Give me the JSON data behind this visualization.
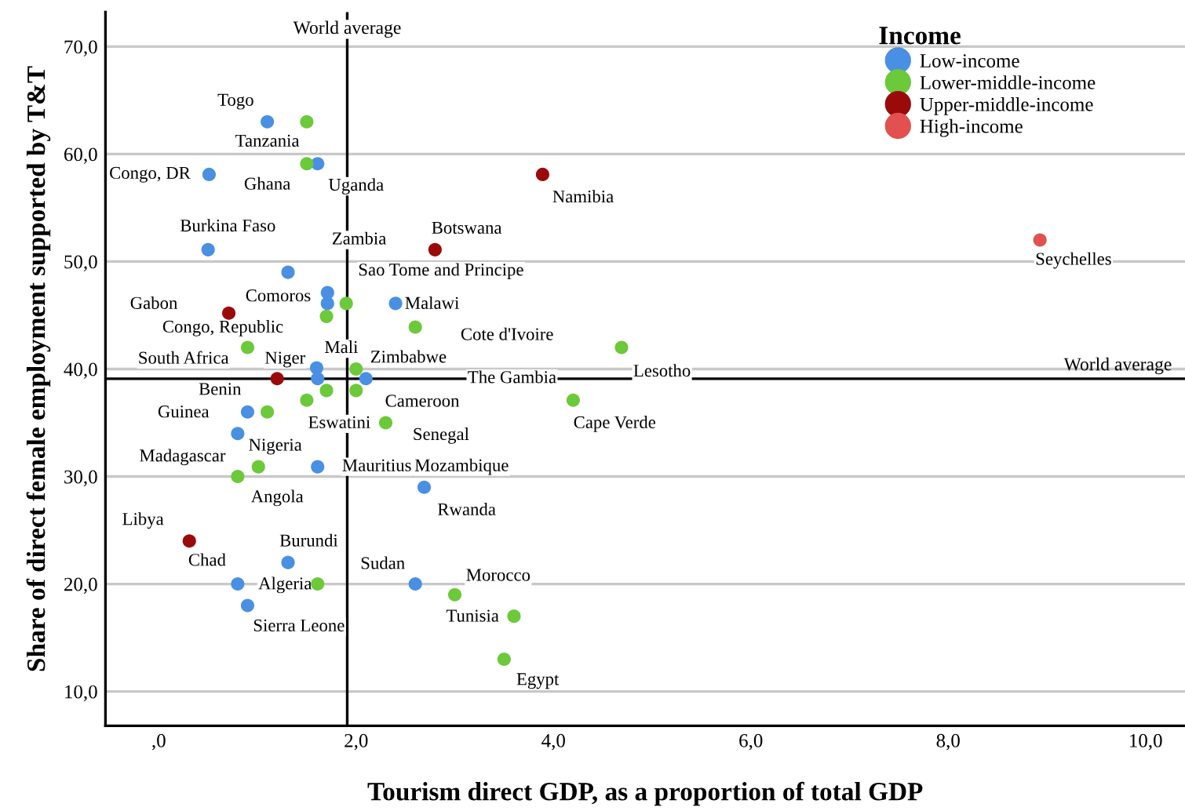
{
  "chart_data": {
    "type": "scatter",
    "xlabel": "Tourism direct GDP, as a proportion of total GDP",
    "ylabel": "Share of direct female employment supported by T&T",
    "legend_title": "Income",
    "legend": "top right",
    "grid": "y",
    "marker": "circle",
    "xlim": [
      -0.54,
      10.4
    ],
    "ylim": [
      6.8,
      73.2
    ],
    "xticks": [
      {
        "value": 0,
        "label": ",0"
      },
      {
        "value": 2,
        "label": "2,0"
      },
      {
        "value": 4,
        "label": "4,0"
      },
      {
        "value": 6,
        "label": "6,0"
      },
      {
        "value": 8,
        "label": "8,0"
      },
      {
        "value": 10,
        "label": "10,0"
      }
    ],
    "yticks": [
      {
        "value": 10,
        "label": "10,0"
      },
      {
        "value": 20,
        "label": "20,0"
      },
      {
        "value": 30,
        "label": "30,0"
      },
      {
        "value": 40,
        "label": "40,0"
      },
      {
        "value": 50,
        "label": "50,0"
      },
      {
        "value": 60,
        "label": "60,0"
      },
      {
        "value": 70,
        "label": "70,0"
      }
    ],
    "series": [
      {
        "name": "Low-income",
        "color": "#4a90e2",
        "x": [
          1.1,
          1.61,
          0.51,
          0.5,
          1.31,
          1.71,
          1.71,
          2.4,
          1.6,
          1.61,
          2.1,
          0.9,
          0.8,
          1.61,
          2.69,
          1.31,
          0.8,
          2.6,
          0.9
        ],
        "values": [
          63.0,
          59.1,
          58.1,
          51.1,
          49.0,
          47.1,
          46.1,
          46.1,
          40.1,
          39.1,
          39.1,
          36.0,
          34.0,
          30.9,
          29.0,
          22.0,
          20.0,
          20.0,
          18.0
        ]
      },
      {
        "name": "Lower-middle-income",
        "color": "#6cc93a",
        "x": [
          1.5,
          1.5,
          1.9,
          1.7,
          2.6,
          0.9,
          2.0,
          4.69,
          1.7,
          2.0,
          1.5,
          1.1,
          2.3,
          4.2,
          1.01,
          0.8,
          1.61,
          3.0,
          3.6,
          3.5
        ],
        "values": [
          63.0,
          59.1,
          46.1,
          44.9,
          43.9,
          42.0,
          40.0,
          42.0,
          38.0,
          38.0,
          37.1,
          36.0,
          35.0,
          37.1,
          30.9,
          30.0,
          20.0,
          19.0,
          17.0,
          13.0
        ]
      },
      {
        "name": "Upper-middle-income",
        "color": "#9b0a0a",
        "x": [
          3.89,
          2.8,
          0.71,
          1.2,
          0.31
        ],
        "values": [
          58.1,
          51.1,
          45.2,
          39.1,
          24.0
        ]
      },
      {
        "name": "High-income",
        "color": "#e2504f",
        "x": [
          8.93
        ],
        "values": [
          52.0
        ]
      }
    ],
    "ref_lines": [
      {
        "axis": "x",
        "value": 1.91,
        "label": "World average",
        "color": "#000000"
      },
      {
        "axis": "y",
        "value": 39.1,
        "label": "World average",
        "color": "#000000"
      }
    ],
    "annotations": [
      {
        "text": "Togo",
        "x": 1.1,
        "y": 63.0
      },
      {
        "text": "Tanzania",
        "x": 1.5,
        "y": 63.0
      },
      {
        "text": "Congo, DR",
        "x": 0.51,
        "y": 58.1
      },
      {
        "text": "Ghana",
        "x": 1.5,
        "y": 59.1
      },
      {
        "text": "Uganda",
        "x": 1.61,
        "y": 59.1
      },
      {
        "text": "Burkina Faso",
        "x": 0.5,
        "y": 51.1
      },
      {
        "text": "Zambia",
        "x": 1.31,
        "y": 49.0
      },
      {
        "text": "Botswana",
        "x": 2.8,
        "y": 51.1
      },
      {
        "text": "Namibia",
        "x": 3.89,
        "y": 58.1
      },
      {
        "text": "Seychelles",
        "x": 8.93,
        "y": 52.0
      },
      {
        "text": "Sao Tome and Principe",
        "x": 1.9,
        "y": 46.1
      },
      {
        "text": "Comoros",
        "x": 1.71,
        "y": 47.1
      },
      {
        "text": "Gabon",
        "x": 0.71,
        "y": 45.2
      },
      {
        "text": "Malawi",
        "x": 2.4,
        "y": 46.1
      },
      {
        "text": "Congo, Republic",
        "x": 0.9,
        "y": 42.0
      },
      {
        "text": "Cote d'Ivoire",
        "x": 2.6,
        "y": 43.9
      },
      "South Africa",
      {
        "text": "Niger",
        "x": 1.2,
        "y": 39.1
      },
      {
        "text": "Mali",
        "x": 1.6,
        "y": 40.1
      },
      {
        "text": "Zimbabwe",
        "x": 2.0,
        "y": 40.0
      },
      {
        "text": "Lesotho",
        "x": 4.69,
        "y": 42.0
      },
      "The Gambia",
      "Benin",
      {
        "text": "Cameroon",
        "x": 2.0,
        "y": 38.0
      },
      {
        "text": "Guinea",
        "x": 0.9,
        "y": 36.0
      },
      {
        "text": "Eswatini",
        "x": 2.3,
        "y": 35.0
      },
      {
        "text": "Cape Verde",
        "x": 4.2,
        "y": 37.1
      },
      "Senegal",
      {
        "text": "Nigeria",
        "x": 1.1,
        "y": 36.0
      },
      {
        "text": "Madagascar",
        "x": 0.8,
        "y": 34.0
      },
      {
        "text": "Mauritius",
        "x": 1.61,
        "y": 30.9
      },
      "Mozambique",
      {
        "text": "Angola",
        "x": 0.8,
        "y": 30.0
      },
      {
        "text": "Rwanda",
        "x": 2.69,
        "y": 29.0
      },
      {
        "text": "Libya",
        "x": 0.31,
        "y": 24.0
      },
      {
        "text": "Chad",
        "x": 0.8,
        "y": 20.0
      },
      {
        "text": "Burundi",
        "x": 1.31,
        "y": 22.0
      },
      {
        "text": "Sudan",
        "x": 2.6,
        "y": 20.0
      },
      {
        "text": "Algeria",
        "x": 1.61,
        "y": 20.0
      },
      {
        "text": "Morocco",
        "x": 3.0,
        "y": 19.0
      },
      {
        "text": "Tunisia",
        "x": 3.6,
        "y": 17.0
      },
      {
        "text": "Sierra Leone",
        "x": 0.9,
        "y": 18.0
      },
      {
        "text": "Egypt",
        "x": 3.5,
        "y": 13.0
      }
    ]
  }
}
